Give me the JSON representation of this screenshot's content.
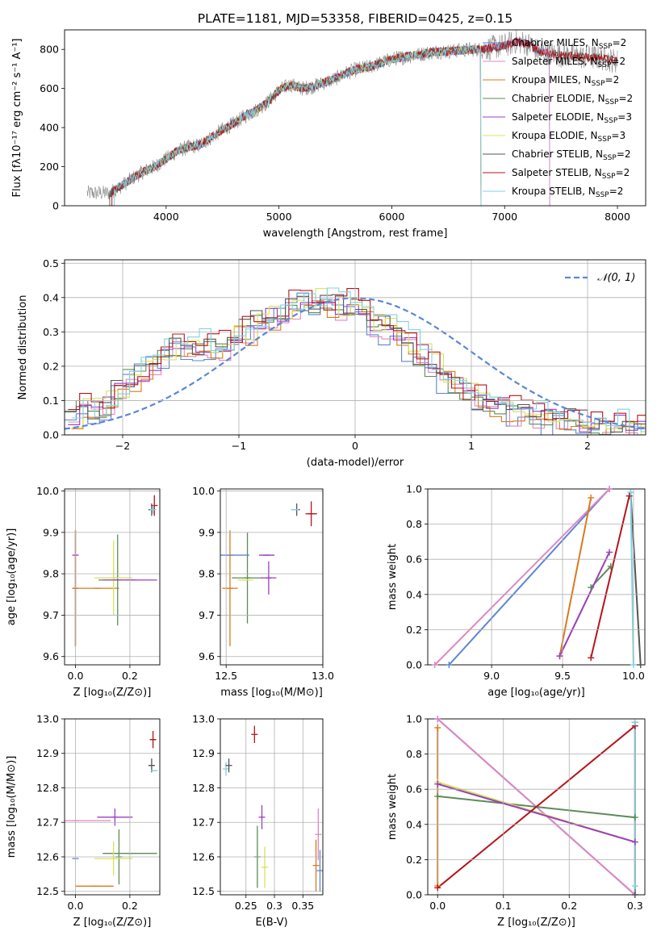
{
  "figure": {
    "title": "PLATE=1181, MJD=53358, FIBERID=0425, z=0.15"
  },
  "chart_data": [
    {
      "id": "spectrum",
      "type": "line",
      "xlabel": "wavelength [Angstrom, rest frame]",
      "ylabel": "Flux [fλ10⁻¹⁷ erg cm⁻² s⁻¹ A⁻¹]",
      "xlim": [
        3100,
        8250
      ],
      "ylim": [
        0,
        900
      ],
      "xticks": [
        4000,
        5000,
        6000,
        7000,
        8000
      ],
      "yticks": [
        0,
        200,
        400,
        600,
        800
      ],
      "grid": false,
      "legend_position": "upper right",
      "observed_outline": {
        "x": [
          3300,
          3500,
          3600,
          3700,
          3800,
          3900,
          4000,
          4100,
          4200,
          4300,
          4400,
          4500,
          4600,
          4700,
          4800,
          4900,
          5000,
          5100,
          5200,
          5300,
          5400,
          5500,
          5600,
          5700,
          5800,
          5900,
          6000,
          6100,
          6200,
          6300,
          6400,
          6500,
          6600,
          6700,
          6800,
          6900,
          7000,
          7100,
          7200,
          7300,
          7400,
          7500,
          7600,
          7700,
          7800,
          7900,
          8000
        ],
        "y": [
          65,
          65,
          100,
          140,
          175,
          200,
          240,
          280,
          300,
          310,
          350,
          390,
          420,
          460,
          490,
          530,
          590,
          620,
          600,
          610,
          630,
          650,
          680,
          700,
          710,
          730,
          750,
          760,
          770,
          780,
          790,
          790,
          795,
          800,
          800,
          810,
          820,
          840,
          830,
          790,
          780,
          770,
          770,
          760,
          760,
          750,
          740
        ]
      },
      "model_dropout_x": {
        "Chabrier MILES": 7400,
        "Salpeter MILES": 7400,
        "Kroupa MILES": 6790,
        "Chabrier ELODIE": 6790,
        "Salpeter ELODIE": 6790,
        "Kroupa ELODIE": 6790,
        "Chabrier STELIB": null,
        "Salpeter STELIB": null,
        "Kroupa STELIB": 6790
      }
    },
    {
      "id": "residuals",
      "type": "line",
      "xlabel": "(data-model)/error",
      "ylabel": "Normed distribution",
      "xlim": [
        -2.5,
        2.5
      ],
      "ylim": [
        0,
        0.51
      ],
      "xticks": [
        -2,
        -1,
        0,
        1,
        2
      ],
      "yticks": [
        0.0,
        0.1,
        0.2,
        0.3,
        0.4,
        0.5
      ],
      "grid": true,
      "legend_position": "upper right",
      "normal_curve_label": "𝒩(0, 1)",
      "hist_bins": [
        -2.5,
        -2.4,
        -2.3,
        -2.2,
        -2.1,
        -2.0,
        -1.9,
        -1.8,
        -1.7,
        -1.6,
        -1.5,
        -1.4,
        -1.3,
        -1.2,
        -1.1,
        -1.0,
        -0.9,
        -0.8,
        -0.7,
        -0.6,
        -0.5,
        -0.4,
        -0.3,
        -0.2,
        -0.1,
        0.0,
        0.1,
        0.2,
        0.3,
        0.4,
        0.5,
        0.6,
        0.7,
        0.8,
        0.9,
        1.0,
        1.1,
        1.2,
        1.3,
        1.4,
        1.5,
        1.6,
        1.7,
        1.8,
        1.9,
        2.0,
        2.1,
        2.2,
        2.3,
        2.4,
        2.5
      ],
      "hist_base": [
        0.05,
        0.08,
        0.07,
        0.09,
        0.13,
        0.16,
        0.19,
        0.22,
        0.24,
        0.26,
        0.27,
        0.26,
        0.25,
        0.26,
        0.29,
        0.3,
        0.32,
        0.34,
        0.36,
        0.38,
        0.4,
        0.39,
        0.38,
        0.37,
        0.38,
        0.36,
        0.33,
        0.31,
        0.29,
        0.26,
        0.23,
        0.2,
        0.17,
        0.14,
        0.12,
        0.1,
        0.09,
        0.08,
        0.07,
        0.06,
        0.06,
        0.05,
        0.05,
        0.04,
        0.04,
        0.03,
        0.03,
        0.03,
        0.02,
        0.02
      ]
    },
    {
      "id": "age_vs_Z",
      "type": "scatter",
      "xlabel": "Z [log₁₀(Z/Z⊙)]",
      "ylabel": "age  [log₁₀(age/yr)]",
      "xlim": [
        -0.04,
        0.31
      ],
      "ylim": [
        9.58,
        10.005
      ],
      "xticks": [
        0.0,
        0.2
      ],
      "yticks": [
        9.6,
        9.7,
        9.8,
        9.9,
        10.0
      ],
      "grid": true,
      "points": [
        {
          "model": "Chabrier MILES",
          "x": 0.0,
          "y": 9.765,
          "xerr": 0.0,
          "yerr": 0.14
        },
        {
          "model": "Salpeter MILES",
          "x": 0.0,
          "y": 9.765,
          "xerr": 0.0,
          "yerr": 0.14
        },
        {
          "model": "Kroupa MILES",
          "x": 0.0,
          "y": 9.765,
          "xerr": 0.0,
          "yerr": 0.14
        },
        {
          "model": "Kroupa MILES",
          "x": 0.08,
          "y": 9.765,
          "xerr": 0.08,
          "yerr": 0.0
        },
        {
          "model": "Chabrier ELODIE",
          "x": 0.155,
          "y": 9.785,
          "xerr": 0.07,
          "yerr": 0.11
        },
        {
          "model": "Kroupa ELODIE",
          "x": 0.14,
          "y": 9.79,
          "xerr": 0.07,
          "yerr": 0.09
        },
        {
          "model": "Salpeter ELODIE",
          "x": 0.2,
          "y": 9.785,
          "xerr": 0.1,
          "yerr": 0.0
        },
        {
          "model": "Salpeter ELODIE",
          "x": 0.0,
          "y": 9.845,
          "xerr": 0.0,
          "yerr": 0.0
        },
        {
          "model": "Chabrier STELIB",
          "x": 0.28,
          "y": 9.955,
          "xerr": 0.01,
          "yerr": 0.015
        },
        {
          "model": "Salpeter STELIB",
          "x": 0.29,
          "y": 9.965,
          "xerr": 0.0,
          "yerr": 0.025
        },
        {
          "model": "Kroupa STELIB",
          "x": 0.285,
          "y": 9.955,
          "xerr": 0.01,
          "yerr": 0.01
        }
      ]
    },
    {
      "id": "age_vs_mass",
      "type": "scatter",
      "xlabel": "mass [log₁₀(M/M⊙)]",
      "ylabel": "",
      "xlim": [
        12.47,
        13.0
      ],
      "ylim": [
        9.58,
        10.005
      ],
      "xticks": [
        12.5,
        13.0
      ],
      "yticks": [
        9.6,
        9.7,
        9.8,
        9.9,
        10.0
      ],
      "grid": true,
      "points": [
        {
          "model": "Chabrier MILES",
          "x": 12.52,
          "y": 9.845,
          "xerr": 0.1,
          "yerr": 0.0
        },
        {
          "model": "Kroupa MILES",
          "x": 12.52,
          "y": 9.765,
          "xerr": 0.04,
          "yerr": 0.14
        },
        {
          "model": "Chabrier ELODIE",
          "x": 12.61,
          "y": 9.79,
          "xerr": 0.08,
          "yerr": 0.11
        },
        {
          "model": "Kroupa ELODIE",
          "x": 12.6,
          "y": 9.785,
          "xerr": 0.04,
          "yerr": 0.0
        },
        {
          "model": "Salpeter ELODIE",
          "x": 12.72,
          "y": 9.79,
          "xerr": 0.04,
          "yerr": 0.04
        },
        {
          "model": "Salpeter ELODIE",
          "x": 12.71,
          "y": 9.845,
          "xerr": 0.04,
          "yerr": 0.0
        },
        {
          "model": "Chabrier STELIB",
          "x": 12.865,
          "y": 9.955,
          "xerr": 0.01,
          "yerr": 0.015
        },
        {
          "model": "Salpeter STELIB",
          "x": 12.94,
          "y": 9.945,
          "xerr": 0.03,
          "yerr": 0.03
        },
        {
          "model": "Kroupa STELIB",
          "x": 12.855,
          "y": 9.955,
          "xerr": 0.02,
          "yerr": 0.0
        }
      ]
    },
    {
      "id": "weight_vs_age",
      "type": "line",
      "xlabel": "age  [log₁₀(age/yr)]",
      "ylabel": "mass weight",
      "xlim": [
        8.55,
        10.08
      ],
      "ylim": [
        0,
        1.0
      ],
      "xticks": [
        9.0,
        9.5,
        10.0
      ],
      "yticks": [
        0.0,
        0.2,
        0.4,
        0.6,
        0.8,
        1.0
      ],
      "grid": true,
      "series": [
        {
          "model": "Chabrier MILES",
          "x": [
            8.7,
            9.83
          ],
          "y": [
            0.0,
            1.0
          ]
        },
        {
          "model": "Salpeter MILES",
          "x": [
            8.6,
            9.83
          ],
          "y": [
            0.0,
            1.0
          ]
        },
        {
          "model": "Kroupa MILES",
          "x": [
            9.48,
            9.7
          ],
          "y": [
            0.05,
            0.95
          ]
        },
        {
          "model": "Chabrier ELODIE",
          "x": [
            9.7,
            9.84
          ],
          "y": [
            0.44,
            0.56
          ]
        },
        {
          "model": "Kroupa ELODIE",
          "x": [
            9.48,
            9.83
          ],
          "y": [
            0.05,
            0.64
          ]
        },
        {
          "model": "Salpeter ELODIE",
          "x": [
            9.48,
            9.83
          ],
          "y": [
            0.05,
            0.64
          ]
        },
        {
          "model": "Chabrier STELIB",
          "x": [
            9.98,
            10.05
          ],
          "y": [
            0.98,
            0.0
          ]
        },
        {
          "model": "Salpeter STELIB",
          "x": [
            9.7,
            9.97
          ],
          "y": [
            0.04,
            0.96
          ]
        },
        {
          "model": "Kroupa STELIB",
          "x": [
            9.98,
            10.0
          ],
          "y": [
            0.98,
            0.0
          ]
        }
      ]
    },
    {
      "id": "mass_vs_Z",
      "type": "scatter",
      "xlabel": "Z [log₁₀(Z/Z⊙)]",
      "ylabel": "mass [log₁₀(M/M⊙)]",
      "xlim": [
        -0.04,
        0.31
      ],
      "ylim": [
        12.49,
        13.0
      ],
      "xticks": [
        0.0,
        0.2
      ],
      "yticks": [
        12.5,
        12.6,
        12.7,
        12.8,
        12.9,
        13.0
      ],
      "grid": true,
      "points": [
        {
          "model": "Chabrier MILES",
          "x": 0.0,
          "y": 12.595,
          "xerr": 0.0,
          "yerr": 0.0
        },
        {
          "model": "Kroupa MILES",
          "x": 0.07,
          "y": 12.515,
          "xerr": 0.07,
          "yerr": 0.0
        },
        {
          "model": "Salpeter MILES",
          "x": 0.0,
          "y": 12.705,
          "xerr": 0.13,
          "yerr": 0.0
        },
        {
          "model": "Chabrier ELODIE",
          "x": 0.2,
          "y": 12.61,
          "xerr": 0.1,
          "yerr": 0.0
        },
        {
          "model": "Chabrier ELODIE",
          "x": 0.16,
          "y": 12.6,
          "xerr": 0.0,
          "yerr": 0.08
        },
        {
          "model": "Kroupa ELODIE",
          "x": 0.14,
          "y": 12.595,
          "xerr": 0.07,
          "yerr": 0.05
        },
        {
          "model": "Salpeter ELODIE",
          "x": 0.145,
          "y": 12.715,
          "xerr": 0.065,
          "yerr": 0.025
        },
        {
          "model": "Chabrier STELIB",
          "x": 0.28,
          "y": 12.865,
          "xerr": 0.01,
          "yerr": 0.02
        },
        {
          "model": "Salpeter STELIB",
          "x": 0.285,
          "y": 12.94,
          "xerr": 0.01,
          "yerr": 0.025
        },
        {
          "model": "Kroupa STELIB",
          "x": 0.29,
          "y": 12.85,
          "xerr": 0.01,
          "yerr": 0.0
        }
      ]
    },
    {
      "id": "mass_vs_ebv",
      "type": "scatter",
      "xlabel": "E(B-V)",
      "ylabel": "",
      "xlim": [
        0.205,
        0.385
      ],
      "ylim": [
        12.49,
        13.0
      ],
      "xticks": [
        0.25,
        0.3,
        0.35
      ],
      "yticks": [
        12.5,
        12.6,
        12.7,
        12.8,
        12.9,
        13.0
      ],
      "grid": true,
      "points": [
        {
          "model": "Kroupa STELIB",
          "x": 0.215,
          "y": 12.855,
          "xerr": 0.0,
          "yerr": 0.02
        },
        {
          "model": "Chabrier STELIB",
          "x": 0.22,
          "y": 12.865,
          "xerr": 0.0,
          "yerr": 0.02
        },
        {
          "model": "Salpeter STELIB",
          "x": 0.265,
          "y": 12.955,
          "xerr": 0.0,
          "yerr": 0.025
        },
        {
          "model": "Chabrier ELODIE",
          "x": 0.27,
          "y": 12.6,
          "xerr": 0.0,
          "yerr": 0.09
        },
        {
          "model": "Salpeter ELODIE",
          "x": 0.278,
          "y": 12.715,
          "xerr": 0.0,
          "yerr": 0.035
        },
        {
          "model": "Kroupa ELODIE",
          "x": 0.283,
          "y": 12.57,
          "xerr": 0.0,
          "yerr": 0.06
        },
        {
          "model": "Kroupa MILES",
          "x": 0.373,
          "y": 12.575,
          "xerr": 0.0,
          "yerr": 0.075
        },
        {
          "model": "Salpeter MILES",
          "x": 0.377,
          "y": 12.665,
          "xerr": 0.0,
          "yerr": 0.075
        },
        {
          "model": "Chabrier MILES",
          "x": 0.38,
          "y": 12.56,
          "xerr": 0.0,
          "yerr": 0.06
        }
      ]
    },
    {
      "id": "weight_vs_Z",
      "type": "line",
      "xlabel": "Z [log₁₀(Z/Z⊙)]",
      "ylabel": "mass weight",
      "xlim": [
        -0.015,
        0.315
      ],
      "ylim": [
        0,
        1.0
      ],
      "xticks": [
        0.0,
        0.1,
        0.2,
        0.3
      ],
      "yticks": [
        0.0,
        0.2,
        0.4,
        0.6,
        0.8,
        1.0
      ],
      "grid": true,
      "series": [
        {
          "model": "Chabrier MILES",
          "x": [
            0.0,
            0.3
          ],
          "y": [
            1.0,
            0.0
          ]
        },
        {
          "model": "Salpeter MILES",
          "x": [
            0.0,
            0.3
          ],
          "y": [
            1.0,
            0.0
          ]
        },
        {
          "model": "Kroupa MILES",
          "x": [
            0.0,
            0.0
          ],
          "y": [
            0.95,
            0.05
          ]
        },
        {
          "model": "Chabrier ELODIE",
          "x": [
            0.0,
            0.3
          ],
          "y": [
            0.56,
            0.44
          ]
        },
        {
          "model": "Kroupa ELODIE",
          "x": [
            0.0,
            0.3
          ],
          "y": [
            0.64,
            0.3
          ]
        },
        {
          "model": "Salpeter ELODIE",
          "x": [
            0.0,
            0.3
          ],
          "y": [
            0.63,
            0.3
          ]
        },
        {
          "model": "Chabrier STELIB",
          "x": [
            0.3,
            0.3
          ],
          "y": [
            0.98,
            0.0
          ]
        },
        {
          "model": "Salpeter STELIB",
          "x": [
            0.0,
            0.3
          ],
          "y": [
            0.04,
            0.96
          ]
        },
        {
          "model": "Kroupa STELIB",
          "x": [
            0.3,
            0.3
          ],
          "y": [
            0.98,
            0.05
          ]
        }
      ]
    }
  ],
  "models": [
    {
      "name": "Chabrier MILES",
      "legend_main": "Chabrier MILES, N",
      "legend_sub": "SSP",
      "legend_value": "=2",
      "color": "#5b86d4"
    },
    {
      "name": "Salpeter MILES",
      "legend_main": "Salpeter MILES, N",
      "legend_sub": "SSP",
      "legend_value": "=2",
      "color": "#e087c0"
    },
    {
      "name": "Kroupa MILES",
      "legend_main": "Kroupa MILES, N",
      "legend_sub": "SSP",
      "legend_value": "=2",
      "color": "#d97a1c"
    },
    {
      "name": "Chabrier ELODIE",
      "legend_main": "Chabrier ELODIE, N",
      "legend_sub": "SSP",
      "legend_value": "=2",
      "color": "#5e8a5a"
    },
    {
      "name": "Salpeter ELODIE",
      "legend_main": "Salpeter ELODIE, N",
      "legend_sub": "SSP",
      "legend_value": "=3",
      "color": "#9a3fc0"
    },
    {
      "name": "Kroupa ELODIE",
      "legend_main": "Kroupa ELODIE, N",
      "legend_sub": "SSP",
      "legend_value": "=3",
      "color": "#d7e35a"
    },
    {
      "name": "Chabrier STELIB",
      "legend_main": "Chabrier STELIB, N",
      "legend_sub": "SSP",
      "legend_value": "=2",
      "color": "#555555"
    },
    {
      "name": "Salpeter STELIB",
      "legend_main": "Salpeter STELIB, N",
      "legend_sub": "SSP",
      "legend_value": "=2",
      "color": "#b5141b"
    },
    {
      "name": "Kroupa STELIB",
      "legend_main": "Kroupa STELIB, N",
      "legend_sub": "SSP",
      "legend_value": "=2",
      "color": "#7fd3df"
    }
  ],
  "colors": {
    "normal_curve": "#5b86d4",
    "grid": "#b0b0b0",
    "observed": "#888888"
  }
}
